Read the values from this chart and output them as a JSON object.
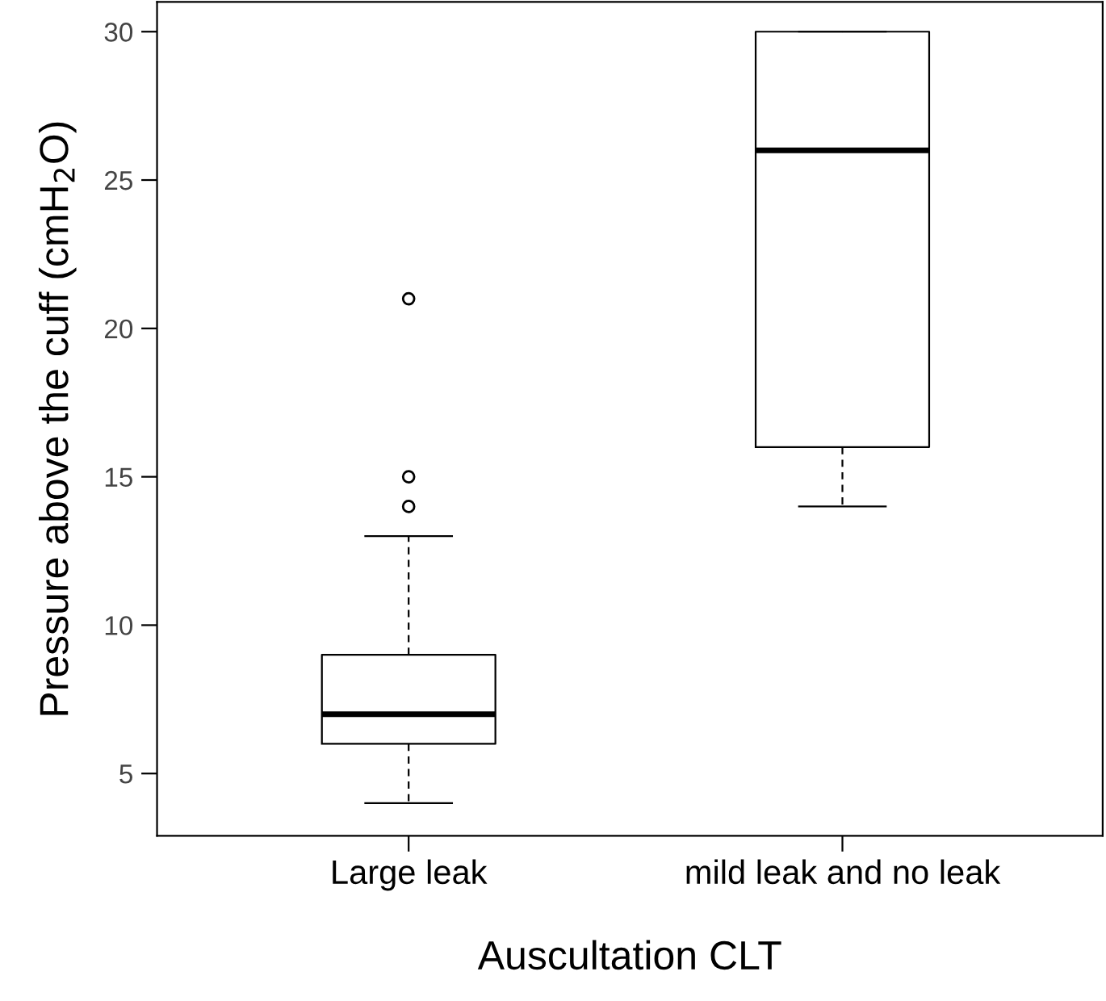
{
  "chart_data": {
    "type": "box",
    "xlabel": "Auscultation CLT",
    "ylabel": "Pressure above the cuff (cmH$_{2}$O)",
    "categories": [
      "Large leak",
      "mild leak and no leak"
    ],
    "boxes": [
      {
        "low": 4,
        "q1": 6,
        "median": 7,
        "q3": 9,
        "high": 13,
        "outliers": [
          14,
          15,
          21
        ]
      },
      {
        "low": 14,
        "q1": 16,
        "median": 26,
        "q3": 30,
        "high": 30
      }
    ],
    "ylim": [
      2.9,
      31
    ],
    "yticks": [
      5,
      10,
      15,
      20,
      25,
      30
    ],
    "grid": false,
    "legend": false
  }
}
